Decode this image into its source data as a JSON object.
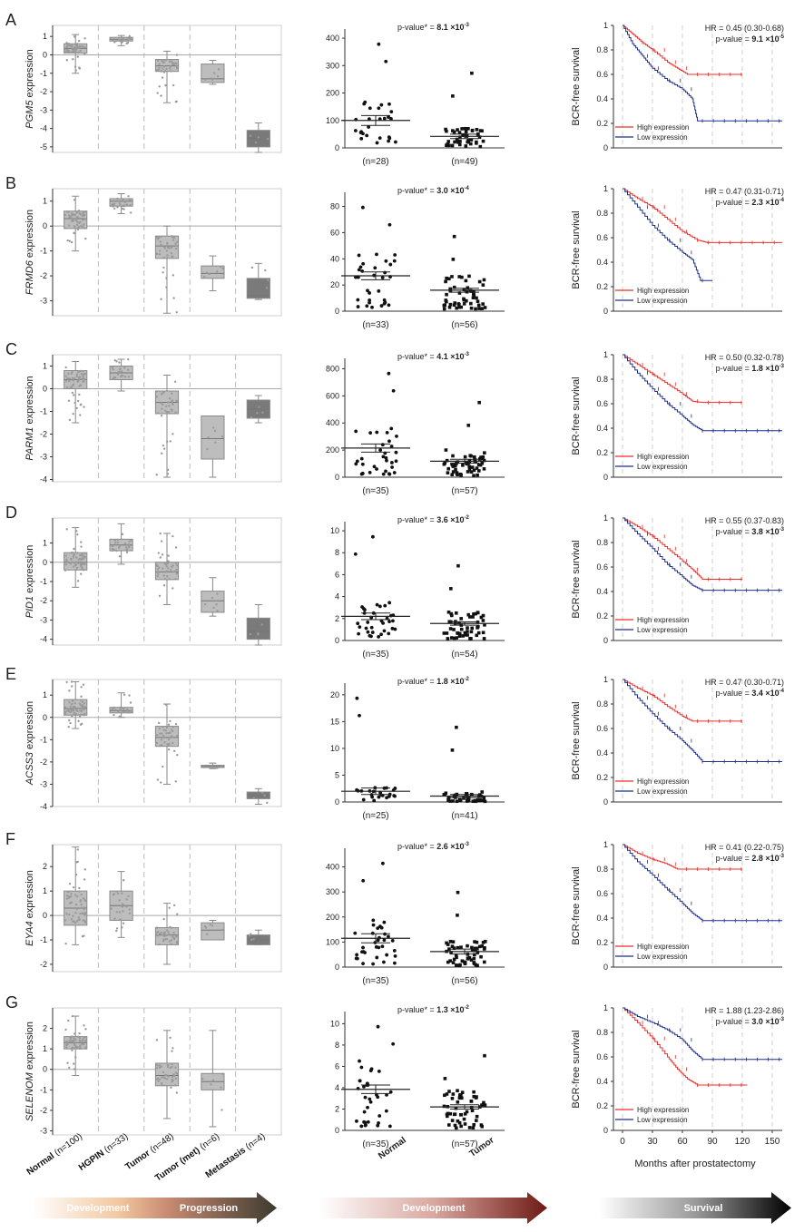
{
  "figure": {
    "box_categories": [
      {
        "name": "Normal",
        "n": "(n=100)"
      },
      {
        "name": "HGPIN",
        "n": "(n=33)"
      },
      {
        "name": "Tumor",
        "n": "(n=48)"
      },
      {
        "name": "Tumor (met)",
        "n": "(n=6)"
      },
      {
        "name": "Metastasis",
        "n": "(n=4)"
      }
    ],
    "dot_categories": [
      "Normal",
      "Tumor"
    ],
    "survival_legend": [
      "High expression",
      "Low expression"
    ],
    "survival_xlabel": "Months after prostatectomy",
    "survival_ylabel": "BCR-free survival",
    "survival_xticks": [
      "0",
      "30",
      "60",
      "90",
      "120",
      "150"
    ],
    "survival_yticks": [
      "0",
      "0.2",
      "0.4",
      "0.6",
      "0.8",
      "1"
    ],
    "arrows": [
      "Development",
      "Progression",
      "Development",
      "Survival"
    ],
    "colors": {
      "high": "#e8302b",
      "low": "#1f2f8a",
      "box": "#bdbdbd",
      "box_met": "#7a7a7a"
    }
  },
  "chart_data": [
    {
      "panel": "A",
      "gene": "PGM5",
      "ylabel_suffix": "expression",
      "box": {
        "type": "box",
        "yticks": [
          1,
          0,
          -1,
          -2,
          -3,
          -4,
          -5
        ],
        "ylim": [
          -5.3,
          1.6
        ],
        "stats": [
          {
            "q1": 0.1,
            "med": 0.35,
            "q3": 0.6,
            "lo": -1.0,
            "hi": 1.1
          },
          {
            "q1": 0.75,
            "med": 0.85,
            "q3": 0.95,
            "lo": 0.5,
            "hi": 1.05
          },
          {
            "q1": -0.9,
            "med": -0.6,
            "q3": -0.25,
            "lo": -2.6,
            "hi": 0.2
          },
          {
            "q1": -1.5,
            "med": -1.3,
            "q3": -0.5,
            "lo": -1.6,
            "hi": -0.3
          },
          {
            "q1": -5.0,
            "med": -4.55,
            "q3": -4.1,
            "lo": -5.3,
            "hi": -3.7
          }
        ]
      },
      "dot": {
        "type": "scatter",
        "yticks": [
          "0",
          "100",
          "200",
          "300",
          "400"
        ],
        "ymax": 420,
        "pvalue": "p-value* = ",
        "pmant": "8.1 ×10",
        "pexp": "-3",
        "normal_mean": 100,
        "normal_sem": 18,
        "tumor_mean": 42,
        "tumor_sem": 8,
        "n_normal": "(n=28)",
        "n_tumor": "(n=49)"
      },
      "surv": {
        "type": "line",
        "hr": "HR = 0.45 (0.30-0.68)",
        "pmant": "9.1 ×10",
        "pexp": "-5",
        "high": [
          [
            0,
            1
          ],
          [
            10,
            0.93
          ],
          [
            20,
            0.86
          ],
          [
            30,
            0.8
          ],
          [
            45,
            0.7
          ],
          [
            55,
            0.65
          ],
          [
            65,
            0.6
          ],
          [
            80,
            0.6
          ],
          [
            120,
            0.6
          ]
        ],
        "low": [
          [
            0,
            1
          ],
          [
            10,
            0.85
          ],
          [
            20,
            0.75
          ],
          [
            30,
            0.65
          ],
          [
            45,
            0.55
          ],
          [
            60,
            0.48
          ],
          [
            70,
            0.4
          ],
          [
            75,
            0.22
          ],
          [
            160,
            0.22
          ]
        ]
      }
    },
    {
      "panel": "B",
      "gene": "FRMD6",
      "ylabel_suffix": "expression",
      "box": {
        "type": "box",
        "yticks": [
          1,
          0,
          -1,
          -2,
          -3
        ],
        "ylim": [
          -3.6,
          1.5
        ],
        "stats": [
          {
            "q1": -0.1,
            "med": 0.3,
            "q3": 0.6,
            "lo": -1.0,
            "hi": 1.2
          },
          {
            "q1": 0.8,
            "med": 1.0,
            "q3": 1.1,
            "lo": 0.5,
            "hi": 1.3
          },
          {
            "q1": -1.3,
            "med": -0.8,
            "q3": -0.4,
            "lo": -3.5,
            "hi": 0.0
          },
          {
            "q1": -2.1,
            "med": -1.9,
            "q3": -1.6,
            "lo": -2.6,
            "hi": -1.2
          },
          {
            "q1": -2.9,
            "med": -2.8,
            "q3": -2.1,
            "lo": -2.95,
            "hi": -1.5
          }
        ]
      },
      "dot": {
        "type": "scatter",
        "yticks": [
          "0",
          "20",
          "40",
          "60",
          "80"
        ],
        "ymax": 88,
        "pvalue": "p-value* = ",
        "pmant": "3.0 ×10",
        "pexp": "-4",
        "normal_mean": 27,
        "normal_sem": 3,
        "tumor_mean": 16,
        "tumor_sem": 1.5,
        "n_normal": "(n=33)",
        "n_tumor": "(n=56)"
      },
      "surv": {
        "type": "line",
        "hr": "HR = 0.47 (0.31-0.71)",
        "pmant": "2.3 ×10",
        "pexp": "-4",
        "high": [
          [
            0,
            1
          ],
          [
            15,
            0.92
          ],
          [
            30,
            0.85
          ],
          [
            45,
            0.75
          ],
          [
            60,
            0.65
          ],
          [
            75,
            0.58
          ],
          [
            85,
            0.56
          ],
          [
            160,
            0.56
          ]
        ],
        "low": [
          [
            0,
            1
          ],
          [
            15,
            0.85
          ],
          [
            30,
            0.7
          ],
          [
            45,
            0.58
          ],
          [
            60,
            0.48
          ],
          [
            70,
            0.42
          ],
          [
            78,
            0.25
          ],
          [
            90,
            0.25
          ]
        ]
      }
    },
    {
      "panel": "C",
      "gene": "PARM1",
      "ylabel_suffix": "expression",
      "box": {
        "type": "box",
        "yticks": [
          1,
          0,
          -1,
          -2,
          -3,
          -4
        ],
        "ylim": [
          -4.1,
          1.5
        ],
        "stats": [
          {
            "q1": 0.0,
            "med": 0.4,
            "q3": 0.8,
            "lo": -1.5,
            "hi": 1.2
          },
          {
            "q1": 0.4,
            "med": 0.7,
            "q3": 1.0,
            "lo": -0.1,
            "hi": 1.3
          },
          {
            "q1": -1.1,
            "med": -0.6,
            "q3": -0.1,
            "lo": -3.9,
            "hi": 0.6
          },
          {
            "q1": -3.1,
            "med": -2.2,
            "q3": -1.2,
            "lo": -3.9,
            "hi": -1.2
          },
          {
            "q1": -1.3,
            "med": -0.9,
            "q3": -0.5,
            "lo": -1.5,
            "hi": -0.3
          }
        ]
      },
      "dot": {
        "type": "scatter",
        "yticks": [
          "0",
          "200",
          "400",
          "600",
          "800"
        ],
        "ymax": 850,
        "pvalue": "p-value* = ",
        "pmant": "4.1 ×10",
        "pexp": "-3",
        "normal_mean": 215,
        "normal_sem": 30,
        "tumor_mean": 118,
        "tumor_sem": 14,
        "n_normal": "(n=35)",
        "n_tumor": "(n=57)"
      },
      "surv": {
        "type": "line",
        "hr": "HR = 0.50 (0.32-0.78)",
        "pmant": "1.8 ×10",
        "pexp": "-3",
        "high": [
          [
            0,
            1
          ],
          [
            15,
            0.92
          ],
          [
            30,
            0.84
          ],
          [
            45,
            0.76
          ],
          [
            60,
            0.68
          ],
          [
            70,
            0.62
          ],
          [
            80,
            0.61
          ],
          [
            120,
            0.61
          ]
        ],
        "low": [
          [
            0,
            1
          ],
          [
            15,
            0.85
          ],
          [
            30,
            0.72
          ],
          [
            45,
            0.6
          ],
          [
            60,
            0.5
          ],
          [
            70,
            0.43
          ],
          [
            80,
            0.38
          ],
          [
            160,
            0.38
          ]
        ]
      }
    },
    {
      "panel": "D",
      "gene": "PID1",
      "ylabel_suffix": "expression",
      "box": {
        "type": "box",
        "yticks": [
          1,
          0,
          -1,
          -2,
          -3,
          -4
        ],
        "ylim": [
          -4.3,
          2.3
        ],
        "stats": [
          {
            "q1": -0.4,
            "med": 0.0,
            "q3": 0.5,
            "lo": -1.3,
            "hi": 1.8
          },
          {
            "q1": 0.6,
            "med": 0.9,
            "q3": 1.2,
            "lo": -0.1,
            "hi": 2.0
          },
          {
            "q1": -0.9,
            "med": -0.5,
            "q3": 0.0,
            "lo": -2.2,
            "hi": 1.5
          },
          {
            "q1": -2.6,
            "med": -2.0,
            "q3": -1.5,
            "lo": -2.8,
            "hi": -0.8
          },
          {
            "q1": -4.0,
            "med": -3.6,
            "q3": -2.9,
            "lo": -4.3,
            "hi": -2.2
          }
        ]
      },
      "dot": {
        "type": "scatter",
        "yticks": [
          "0",
          "2",
          "4",
          "6",
          "8",
          "10"
        ],
        "ymax": 10.5,
        "pvalue": "p-value* = ",
        "pmant": "3.6 ×10",
        "pexp": "-2",
        "normal_mean": 2.2,
        "normal_sem": 0.3,
        "tumor_mean": 1.55,
        "tumor_sem": 0.15,
        "n_normal": "(n=35)",
        "n_tumor": "(n=54)"
      },
      "surv": {
        "type": "line",
        "hr": "HR = 0.55 (0.37-0.83)",
        "pmant": "3.8 ×10",
        "pexp": "-3",
        "high": [
          [
            0,
            1
          ],
          [
            15,
            0.93
          ],
          [
            30,
            0.85
          ],
          [
            45,
            0.75
          ],
          [
            60,
            0.65
          ],
          [
            70,
            0.58
          ],
          [
            80,
            0.5
          ],
          [
            120,
            0.5
          ]
        ],
        "low": [
          [
            0,
            1
          ],
          [
            15,
            0.87
          ],
          [
            30,
            0.75
          ],
          [
            45,
            0.62
          ],
          [
            60,
            0.52
          ],
          [
            70,
            0.45
          ],
          [
            80,
            0.41
          ],
          [
            160,
            0.41
          ]
        ]
      }
    },
    {
      "panel": "E",
      "gene": "ACSS3",
      "ylabel_suffix": "expression",
      "box": {
        "type": "box",
        "yticks": [
          1,
          0,
          -1,
          -2,
          -3,
          -4
        ],
        "ylim": [
          -4.0,
          1.7
        ],
        "stats": [
          {
            "q1": 0.1,
            "med": 0.4,
            "q3": 0.8,
            "lo": -0.5,
            "hi": 1.6
          },
          {
            "q1": 0.2,
            "med": 0.3,
            "q3": 0.45,
            "lo": 0.0,
            "hi": 1.1
          },
          {
            "q1": -1.3,
            "med": -0.9,
            "q3": -0.4,
            "lo": -3.0,
            "hi": 0.6
          },
          {
            "q1": -2.25,
            "med": -2.2,
            "q3": -2.15,
            "lo": -2.3,
            "hi": -2.05
          },
          {
            "q1": -3.65,
            "med": -3.5,
            "q3": -3.35,
            "lo": -3.9,
            "hi": -3.2
          }
        ]
      },
      "dot": {
        "type": "scatter",
        "yticks": [
          "0",
          "5",
          "10",
          "15",
          "20"
        ],
        "ymax": 21.5,
        "pvalue": "p-value* = ",
        "pmant": "1.8 ×10",
        "pexp": "-2",
        "normal_mean": 2.0,
        "normal_sem": 0.6,
        "tumor_mean": 1.1,
        "tumor_sem": 0.3,
        "n_normal": "(n=25)",
        "n_tumor": "(n=41)"
      },
      "surv": {
        "type": "line",
        "hr": "HR = 0.47 (0.30-0.71)",
        "pmant": "3.4 ×10",
        "pexp": "-4",
        "high": [
          [
            0,
            1
          ],
          [
            15,
            0.93
          ],
          [
            30,
            0.87
          ],
          [
            45,
            0.78
          ],
          [
            60,
            0.7
          ],
          [
            70,
            0.66
          ],
          [
            80,
            0.66
          ],
          [
            120,
            0.66
          ]
        ],
        "low": [
          [
            0,
            1
          ],
          [
            15,
            0.85
          ],
          [
            30,
            0.72
          ],
          [
            45,
            0.6
          ],
          [
            60,
            0.5
          ],
          [
            70,
            0.42
          ],
          [
            80,
            0.33
          ],
          [
            160,
            0.33
          ]
        ]
      }
    },
    {
      "panel": "F",
      "gene": "EYA4",
      "ylabel_suffix": "expression",
      "box": {
        "type": "box",
        "yticks": [
          2,
          1,
          0,
          -1,
          -2
        ],
        "ylim": [
          -2.3,
          2.9
        ],
        "stats": [
          {
            "q1": -0.4,
            "med": 0.3,
            "q3": 1.0,
            "lo": -1.2,
            "hi": 2.8
          },
          {
            "q1": -0.2,
            "med": 0.4,
            "q3": 1.0,
            "lo": -0.9,
            "hi": 1.8
          },
          {
            "q1": -1.2,
            "med": -0.8,
            "q3": -0.5,
            "lo": -2.0,
            "hi": 0.5
          },
          {
            "q1": -1.0,
            "med": -0.6,
            "q3": -0.3,
            "lo": -1.0,
            "hi": -0.2
          },
          {
            "q1": -1.2,
            "med": -1.0,
            "q3": -0.8,
            "lo": -1.2,
            "hi": -0.6
          }
        ]
      },
      "dot": {
        "type": "scatter",
        "yticks": [
          "0",
          "100",
          "200",
          "300",
          "400"
        ],
        "ymax": 460,
        "pvalue": "p-value* = ",
        "pmant": "2.6 ×10",
        "pexp": "-3",
        "normal_mean": 115,
        "normal_sem": 18,
        "tumor_mean": 62,
        "tumor_sem": 10,
        "n_normal": "(n=35)",
        "n_tumor": "(n=56)"
      },
      "surv": {
        "type": "line",
        "hr": "HR = 0.41 (0.22-0.75)",
        "pmant": "2.8 ×10",
        "pexp": "-3",
        "high": [
          [
            0,
            1
          ],
          [
            15,
            0.93
          ],
          [
            30,
            0.88
          ],
          [
            45,
            0.84
          ],
          [
            55,
            0.8
          ],
          [
            80,
            0.8
          ],
          [
            120,
            0.8
          ]
        ],
        "low": [
          [
            0,
            1
          ],
          [
            15,
            0.86
          ],
          [
            30,
            0.75
          ],
          [
            45,
            0.63
          ],
          [
            60,
            0.52
          ],
          [
            70,
            0.44
          ],
          [
            80,
            0.38
          ],
          [
            160,
            0.38
          ]
        ]
      }
    },
    {
      "panel": "G",
      "gene": "SELENOM",
      "ylabel_suffix": "expression",
      "box": {
        "type": "box",
        "yticks": [
          2,
          1,
          0,
          -1,
          -2,
          -3
        ],
        "ylim": [
          -3.2,
          3.0
        ],
        "stats": [
          {
            "q1": 1.0,
            "med": 1.3,
            "q3": 1.6,
            "lo": -0.3,
            "hi": 2.6
          },
          null,
          {
            "q1": -0.8,
            "med": -0.3,
            "q3": 0.3,
            "lo": -2.4,
            "hi": 1.9
          },
          {
            "q1": -1.0,
            "med": -0.6,
            "q3": -0.2,
            "lo": -2.8,
            "hi": 1.9
          },
          null
        ]
      },
      "dot": {
        "type": "scatter",
        "yticks": [
          "0",
          "2",
          "4",
          "6",
          "8",
          "10"
        ],
        "ymax": 10.8,
        "pvalue": "p-value* = ",
        "pmant": "1.3 ×10",
        "pexp": "-2",
        "normal_mean": 3.85,
        "normal_sem": 0.4,
        "tumor_mean": 2.2,
        "tumor_sem": 0.2,
        "n_normal": "(n=35)",
        "n_tumor": "(n=57)"
      },
      "surv": {
        "type": "line",
        "hr": "HR = 1.88 (1.23-2.86)",
        "pmant": "3.0 ×10",
        "pexp": "-3",
        "high": [
          [
            0,
            1
          ],
          [
            15,
            0.88
          ],
          [
            30,
            0.75
          ],
          [
            45,
            0.6
          ],
          [
            55,
            0.5
          ],
          [
            65,
            0.42
          ],
          [
            75,
            0.37
          ],
          [
            125,
            0.37
          ]
        ],
        "low": [
          [
            0,
            1
          ],
          [
            15,
            0.93
          ],
          [
            30,
            0.88
          ],
          [
            45,
            0.82
          ],
          [
            60,
            0.74
          ],
          [
            70,
            0.65
          ],
          [
            80,
            0.58
          ],
          [
            160,
            0.58
          ]
        ]
      }
    }
  ]
}
